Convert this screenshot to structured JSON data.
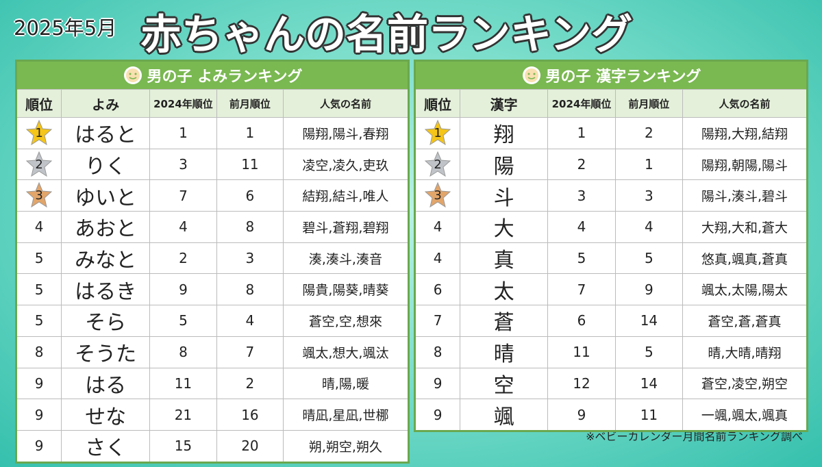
{
  "header": {
    "date": "2025年5月",
    "title": "赤ちゃんの名前ランキング"
  },
  "tables": [
    {
      "title": "男の子 よみランキング",
      "columns": [
        "順位",
        "よみ",
        "2024年順位",
        "前月順位",
        "人気の名前"
      ],
      "rows": [
        [
          1,
          "はると",
          1,
          1,
          "陽翔,陽斗,春翔"
        ],
        [
          2,
          "りく",
          3,
          11,
          "凌空,凌久,吏玖"
        ],
        [
          3,
          "ゆいと",
          7,
          6,
          "結翔,結斗,唯人"
        ],
        [
          4,
          "あおと",
          4,
          8,
          "碧斗,蒼翔,碧翔"
        ],
        [
          5,
          "みなと",
          2,
          3,
          "湊,湊斗,湊音"
        ],
        [
          5,
          "はるき",
          9,
          8,
          "陽貴,陽葵,晴葵"
        ],
        [
          5,
          "そら",
          5,
          4,
          "蒼空,空,想來"
        ],
        [
          8,
          "そうた",
          8,
          7,
          "颯太,想大,颯汰"
        ],
        [
          9,
          "はる",
          11,
          2,
          "晴,陽,暖"
        ],
        [
          9,
          "せな",
          21,
          16,
          "晴凪,星凪,世梛"
        ],
        [
          9,
          "さく",
          15,
          20,
          "朔,朔空,朔久"
        ]
      ]
    },
    {
      "title": "男の子 漢字ランキング",
      "columns": [
        "順位",
        "漢字",
        "2024年順位",
        "前月順位",
        "人気の名前"
      ],
      "rows": [
        [
          1,
          "翔",
          1,
          2,
          "陽翔,大翔,結翔"
        ],
        [
          2,
          "陽",
          2,
          1,
          "陽翔,朝陽,陽斗"
        ],
        [
          3,
          "斗",
          3,
          3,
          "陽斗,湊斗,碧斗"
        ],
        [
          4,
          "大",
          4,
          4,
          "大翔,大和,蒼大"
        ],
        [
          4,
          "真",
          5,
          5,
          "悠真,颯真,蒼真"
        ],
        [
          6,
          "太",
          7,
          9,
          "颯太,太陽,陽太"
        ],
        [
          7,
          "蒼",
          6,
          14,
          "蒼空,蒼,蒼真"
        ],
        [
          8,
          "晴",
          11,
          5,
          "晴,大晴,晴翔"
        ],
        [
          9,
          "空",
          12,
          14,
          "蒼空,凌空,朔空"
        ],
        [
          9,
          "颯",
          9,
          11,
          "一颯,颯太,颯真"
        ]
      ]
    }
  ],
  "footnote": "※ベビーカレンダー月間名前ランキング調べ"
}
